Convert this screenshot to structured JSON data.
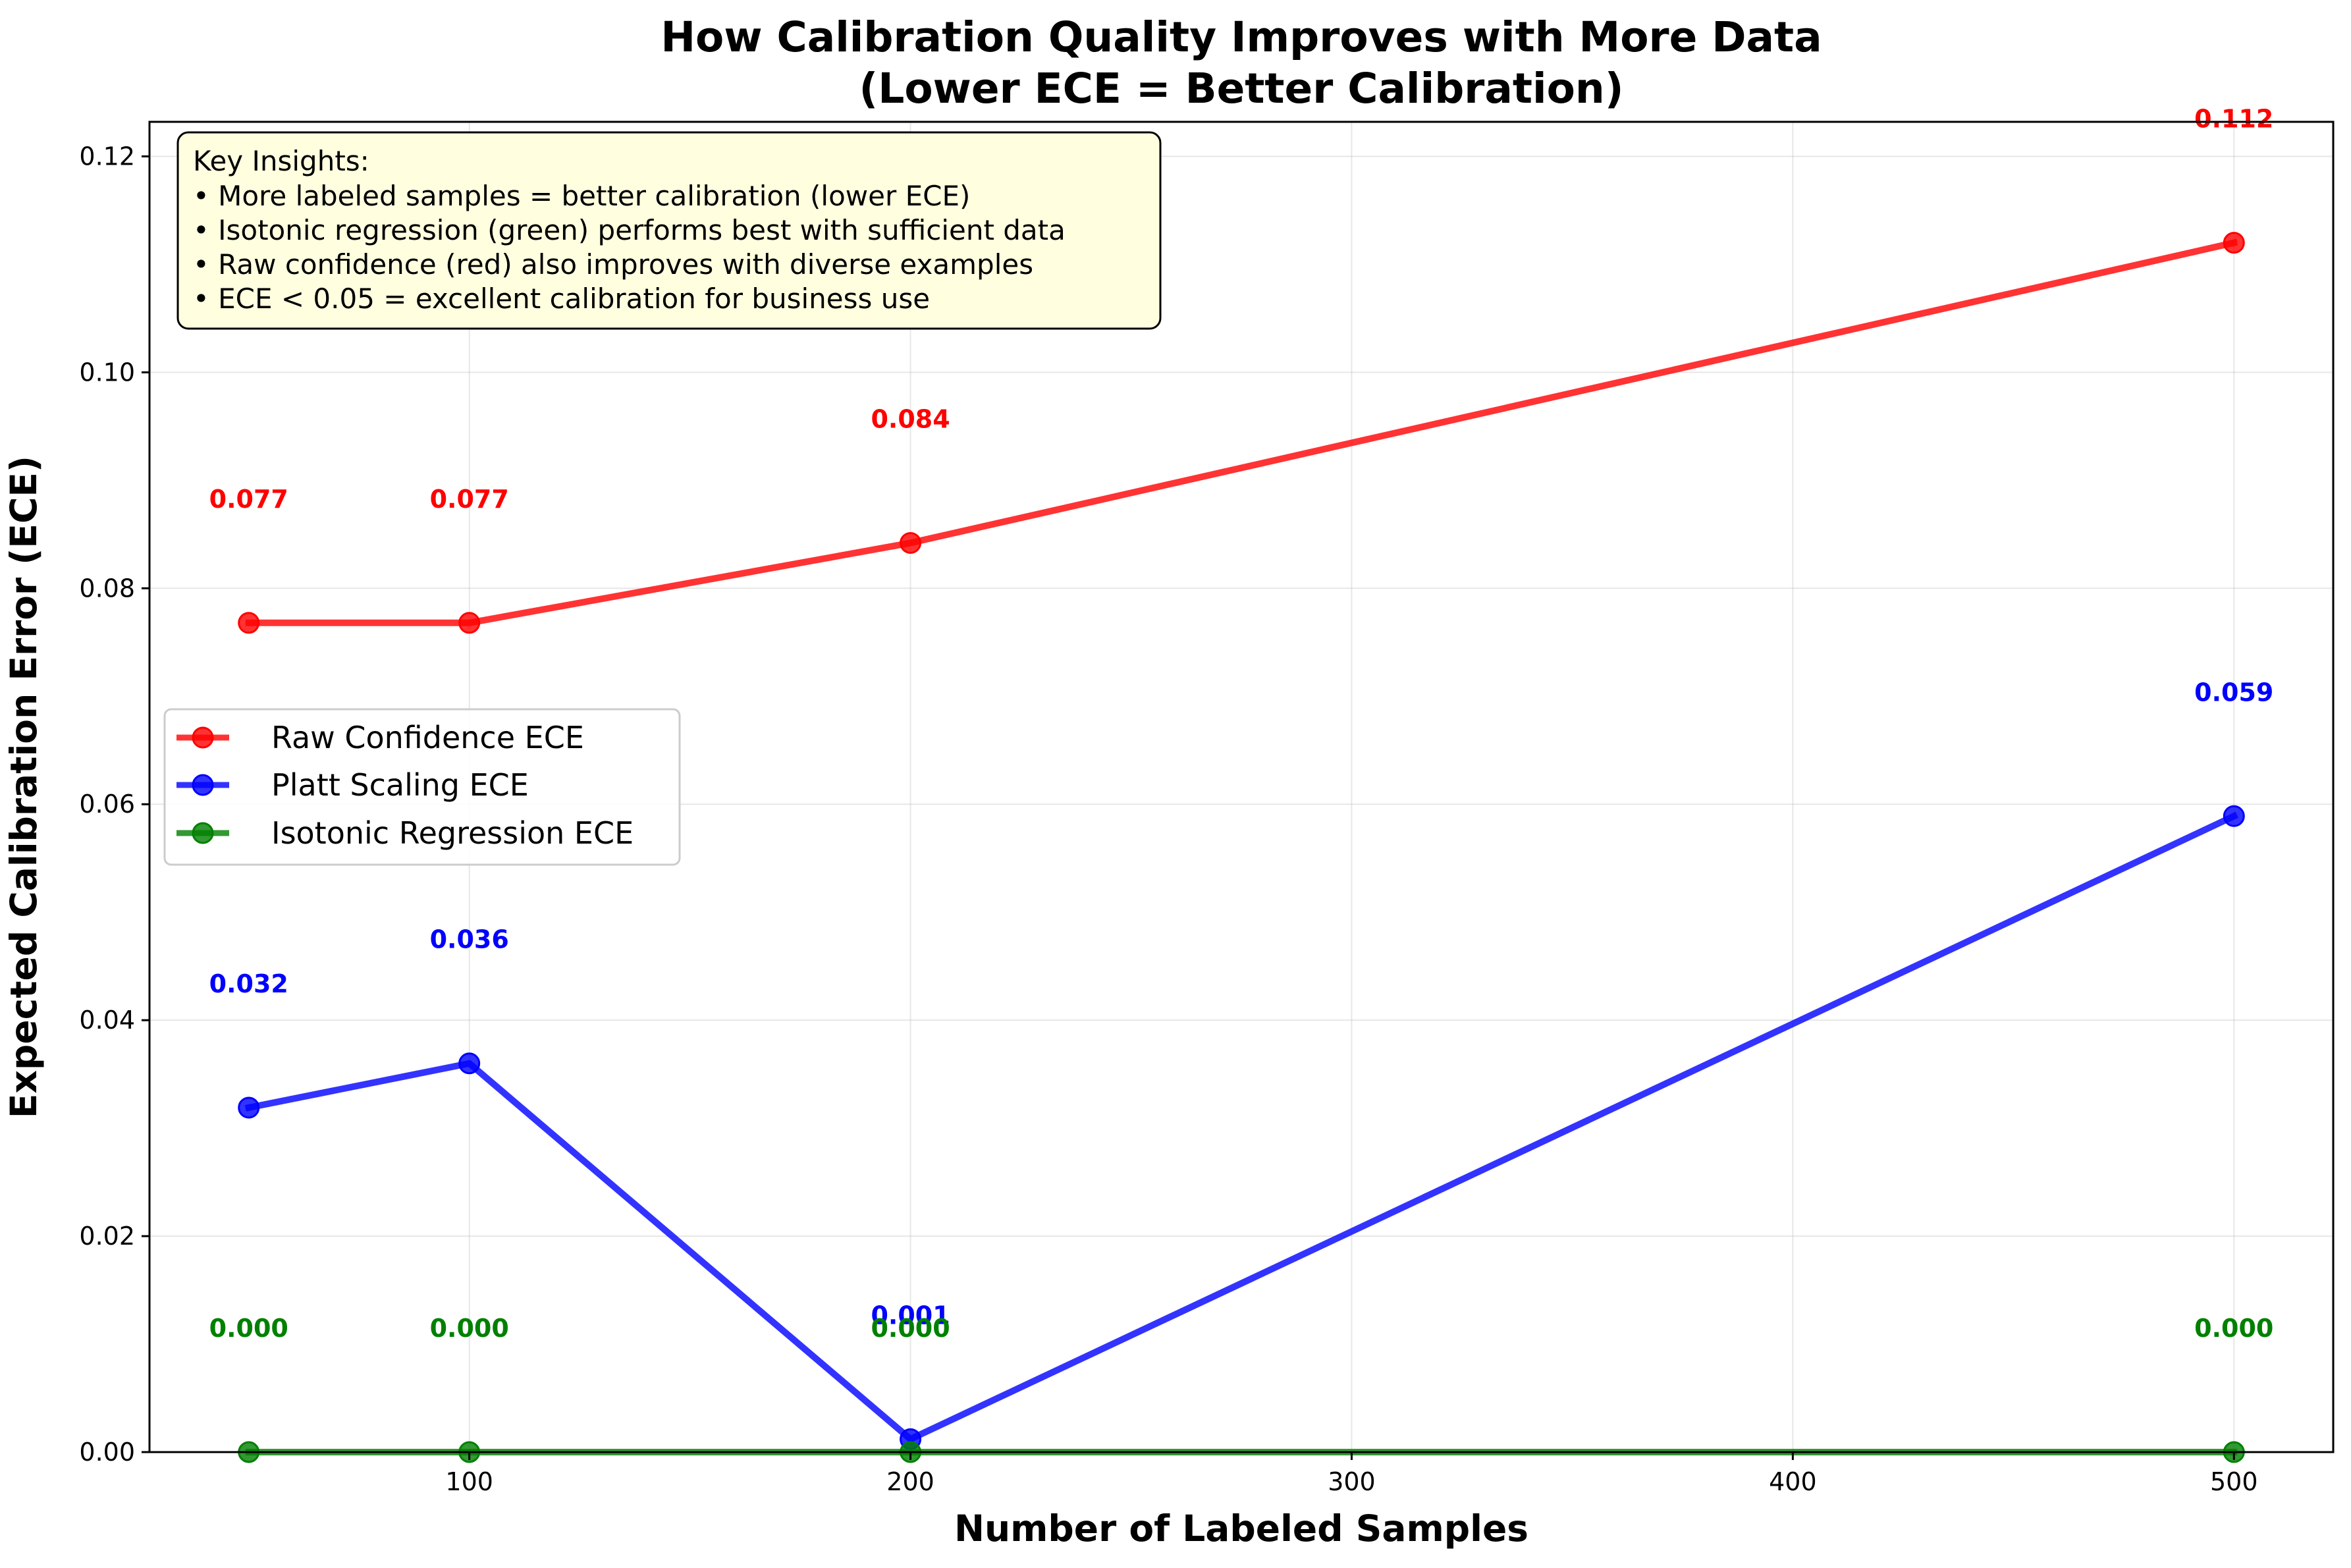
{
  "chart_data": {
    "type": "line",
    "title_line1": "How Calibration Quality Improves with More Data",
    "title_line2": "(Lower ECE = Better Calibration)",
    "xlabel": "Number of Labeled Samples",
    "ylabel": "Expected Calibration Error (ECE)",
    "x": [
      50,
      100,
      200,
      500
    ],
    "xlim": [
      27.5,
      522.5
    ],
    "ylim": [
      0,
      0.1232
    ],
    "xticks": [
      100,
      200,
      300,
      400,
      500
    ],
    "yticks": [
      0.0,
      0.02,
      0.04,
      0.06,
      0.08,
      0.1,
      0.12
    ],
    "ytick_labels": [
      "0.00",
      "0.02",
      "0.04",
      "0.06",
      "0.08",
      "0.10",
      "0.12"
    ],
    "grid": true,
    "legend_placement": "center-left",
    "series": [
      {
        "name": "Raw Confidence ECE",
        "color": "#ff0000",
        "values": [
          0.0768,
          0.0768,
          0.0842,
          0.112
        ],
        "labels": [
          "0.077",
          "0.077",
          "0.084",
          "0.112"
        ]
      },
      {
        "name": "Platt Scaling ECE",
        "color": "#0000ff",
        "values": [
          0.0319,
          0.036,
          0.0012,
          0.0589
        ],
        "labels": [
          "0.032",
          "0.036",
          "0.001",
          "0.059"
        ]
      },
      {
        "name": "Isotonic Regression ECE",
        "color": "#008000",
        "values": [
          0.0,
          0.0,
          0.0,
          0.0
        ],
        "labels": [
          "0.000",
          "0.000",
          "0.000",
          "0.000"
        ]
      }
    ],
    "annotation": {
      "title": "Key Insights:",
      "lines": [
        "• More labeled samples = better calibration (lower ECE)",
        "• Isotonic regression (green) performs best with sufficient data",
        "• Raw confidence (red) also improves with diverse examples",
        "• ECE < 0.05 = excellent calibration for business use"
      ],
      "background": "#ffffe0",
      "placement": "top-left"
    }
  }
}
